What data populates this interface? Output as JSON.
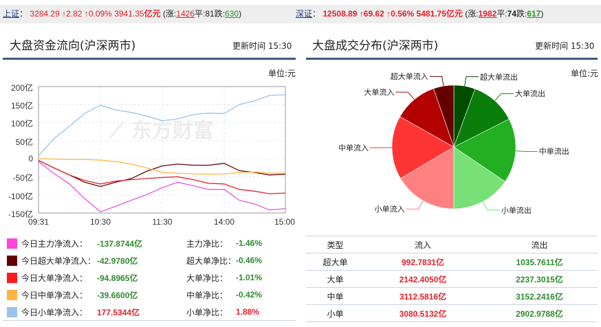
{
  "ticker": {
    "sh": {
      "name": "上证",
      "sep": "：",
      "index": "3284.29",
      "change": "↑2.82",
      "pct": "↑0.09%",
      "amount_num": "3941.35",
      "amount_unit": "亿元",
      "open_paren": "(涨:",
      "up": "1426",
      "flat_label": "平:",
      "flat": "81",
      "down_label": "跌:",
      "down": "630",
      "close_paren": ")"
    },
    "sz": {
      "name": "深证",
      "sep": "：",
      "index": "12508.89",
      "change": "↑69.62",
      "pct": "↑0.56%",
      "amount_num": "5481.75",
      "amount_unit": "亿元",
      "open_paren": "(涨:",
      "up": "1982",
      "flat_label": "平:",
      "flat": "74",
      "down_label": "跌:",
      "down": "617",
      "close_paren": ")"
    }
  },
  "left_panel": {
    "title": "大盘资金流向(沪深两市)",
    "update_label": "更新时间",
    "update_time": "15:30",
    "unit": "单位:元",
    "watermark": "东方财富",
    "legend": [
      {
        "color": "#ff44dd",
        "label": "今日主力净流入：",
        "value": "-137.8744亿",
        "ratio_label": "主力净比：",
        "ratio": "-1.46%",
        "sign": "neg"
      },
      {
        "color": "#660000",
        "label": "今日超大单净流入：",
        "value": "-42.9780亿",
        "ratio_label": "超大单净比：",
        "ratio": "-0.46%",
        "sign": "neg"
      },
      {
        "color": "#ff1a1a",
        "label": "今日大单净流入：",
        "value": "-94.8965亿",
        "ratio_label": "大单净比：",
        "ratio": "-1.01%",
        "sign": "neg"
      },
      {
        "color": "#ffb540",
        "label": "今日中单净流入：",
        "value": "-39.6600亿",
        "ratio_label": "中单净比：",
        "ratio": "-0.42%",
        "sign": "neg"
      },
      {
        "color": "#99c2ee",
        "label": "今日小单净流入：",
        "value": "177.5344亿",
        "ratio_label": "小单净比：",
        "ratio": "1.88%",
        "sign": "pos"
      }
    ]
  },
  "right_panel": {
    "title": "大盘成交分布(沪深两市)",
    "update_label": "更新时间",
    "update_time": "15:30",
    "unit": "单位:元",
    "table": {
      "headers": [
        "类型",
        "流入",
        "流出"
      ],
      "rows": [
        [
          "超大单",
          "992.7831亿",
          "1035.7611亿"
        ],
        [
          "大单",
          "2142.4050亿",
          "2237.3015亿"
        ],
        [
          "中单",
          "3112.5816亿",
          "3152.2416亿"
        ],
        [
          "小单",
          "3080.5132亿",
          "2902.9788亿"
        ]
      ]
    }
  },
  "chart_data": [
    {
      "type": "line",
      "title": "大盘资金流向(沪深两市)",
      "xlabel": "",
      "ylabel": "单位:元",
      "x_ticks": [
        "09:31",
        "10:30",
        "11:30",
        "14:00",
        "15:00"
      ],
      "y_ticks": [
        "200亿",
        "150亿",
        "100亿",
        "50亿",
        "0",
        "-50亿",
        "-100亿",
        "-150亿"
      ],
      "ylim": [
        -150,
        200
      ],
      "grid": true,
      "x": [
        "09:31",
        "09:45",
        "10:00",
        "10:15",
        "10:30",
        "10:45",
        "11:00",
        "11:15",
        "11:30",
        "13:15",
        "13:30",
        "13:45",
        "14:00",
        "14:15",
        "14:30",
        "14:45",
        "15:00"
      ],
      "series": [
        {
          "name": "主力净流入",
          "color": "#ee55dd",
          "values": [
            -8,
            -40,
            -70,
            -110,
            -147,
            -132,
            -115,
            -100,
            -80,
            -65,
            -75,
            -85,
            -85,
            -115,
            -125,
            -142,
            -138
          ]
        },
        {
          "name": "超大单净流入",
          "color": "#660000",
          "values": [
            -5,
            -25,
            -45,
            -65,
            -77,
            -65,
            -55,
            -35,
            -20,
            -15,
            -18,
            -18,
            -13,
            -33,
            -38,
            -45,
            -43
          ]
        },
        {
          "name": "大单净流入",
          "color": "#e8202a",
          "values": [
            -5,
            -25,
            -45,
            -60,
            -70,
            -62,
            -58,
            -55,
            -52,
            -50,
            -58,
            -68,
            -70,
            -85,
            -90,
            -97,
            -95
          ]
        },
        {
          "name": "中单净流入",
          "color": "#ffb540",
          "values": [
            0,
            -1,
            -2,
            -2,
            -4,
            -8,
            -15,
            -25,
            -38,
            -40,
            -42,
            -43,
            -42,
            -38,
            -37,
            -40,
            -40
          ]
        },
        {
          "name": "小单净流入",
          "color": "#99c2ee",
          "values": [
            8,
            55,
            90,
            125,
            148,
            135,
            128,
            118,
            105,
            110,
            122,
            126,
            125,
            150,
            160,
            175,
            177
          ]
        }
      ]
    },
    {
      "type": "pie",
      "title": "大盘成交分布(沪深两市)",
      "categories": [
        "超大单流出",
        "大单流出",
        "中单流出",
        "小单流出",
        "小单流入",
        "中单流入",
        "大单流入",
        "超大单流入"
      ],
      "values": [
        1035.7611,
        2237.3015,
        3152.2416,
        2902.9788,
        3080.5132,
        3112.5816,
        2142.405,
        992.7831
      ],
      "colors": [
        "#004d00",
        "#0a7d0a",
        "#22b022",
        "#77e077",
        "#ff8080",
        "#ff3535",
        "#b30000",
        "#660000"
      ]
    }
  ]
}
